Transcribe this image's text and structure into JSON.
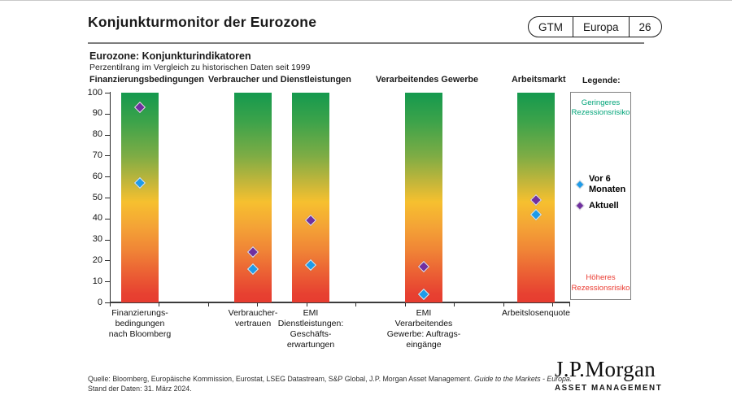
{
  "header": {
    "title": "Konjunkturmonitor der Eurozone",
    "pill": [
      "GTM",
      "Europa",
      "26"
    ]
  },
  "chart_header": {
    "title": "Eurozone: Konjunkturindikatoren",
    "subtitle": "Perzentilrang im Vergleich zu historischen Daten seit 1999"
  },
  "group_headers": [
    "Finanzierungsbedingungen",
    "Verbraucher und Dienstleistungen",
    "Verarbeitendes Gewerbe",
    "Arbeitsmarkt"
  ],
  "legend": {
    "heading": "Legende:",
    "low_risk_label": "Geringeres\nRezessionsrisiko",
    "low_risk_color": "#00a478",
    "high_risk_label": "Höheres\nRezessionsrisiko",
    "high_risk_color": "#ea3a30",
    "markers": [
      {
        "label": "Vor 6\nMonaten",
        "color": "#1e9be9"
      },
      {
        "label": "Aktuell",
        "color": "#7030a0"
      }
    ]
  },
  "chart_data": {
    "type": "scatter",
    "title": "Eurozone: Konjunkturindikatoren",
    "subtitle": "Perzentilrang im Vergleich zu historischen Daten seit 1999",
    "ylabel": "Perzentilrang",
    "ylim": [
      0,
      100
    ],
    "yticks": [
      0,
      10,
      20,
      30,
      40,
      50,
      60,
      70,
      80,
      90,
      100
    ],
    "grid": false,
    "column_gradient": [
      "#14994e",
      "#f6c02f",
      "#e73c30"
    ],
    "categories": [
      "Finanzierungs-\nbedingungen\nnach Bloomberg",
      "Verbraucher-\nvertrauen",
      "EMI\nDienstleistungen:\nGeschäfts-\nerwartungen",
      "EMI\nVerarbeitendes\nGewerbe: Auftrags-\neingänge",
      "Arbeitslosenquote"
    ],
    "series": [
      {
        "name": "Vor 6 Monaten",
        "color": "#1e9be9",
        "values": [
          57,
          16,
          18,
          4,
          42
        ]
      },
      {
        "name": "Aktuell",
        "color": "#7030a0",
        "values": [
          93,
          24,
          39,
          17,
          49
        ]
      }
    ]
  },
  "footer": {
    "source_normal": "Quelle: Bloomberg, Europäische Kommission, Eurostat, LSEG Datastream, S&P Global, J.P. Morgan Asset Management. ",
    "source_italic": "Guide to the Markets - Europa.",
    "date_line": "Stand der Daten: 31. März 2024."
  },
  "logo": {
    "name": "J.P.Morgan",
    "sub": "ASSET MANAGEMENT"
  }
}
